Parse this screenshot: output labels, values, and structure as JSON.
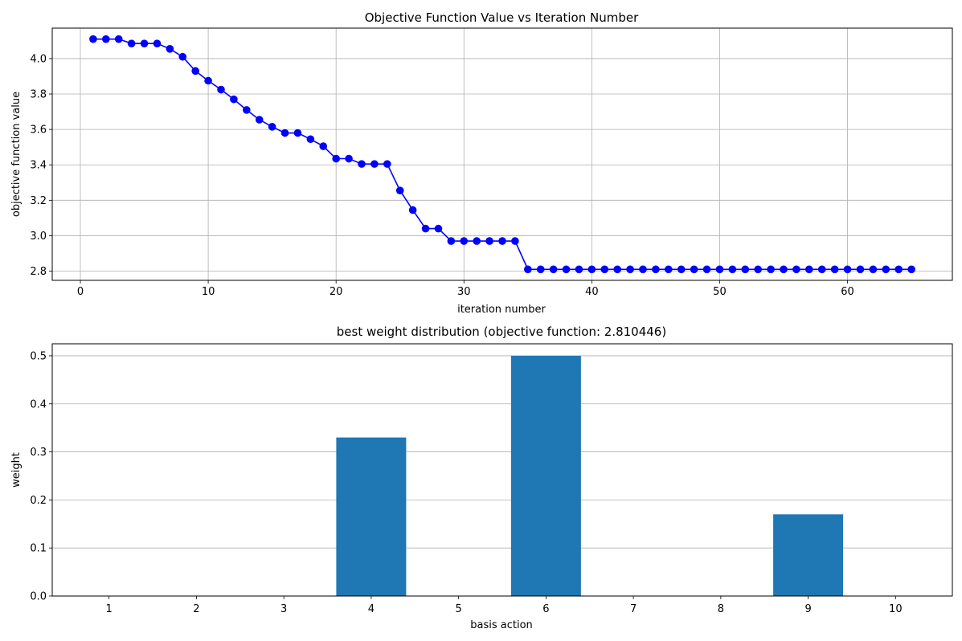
{
  "chart_data": [
    {
      "type": "line",
      "title": "Objective Function Value vs Iteration Number",
      "xlabel": "iteration number",
      "ylabel": "objective function value",
      "xlim": [
        -2.2,
        68.2
      ],
      "ylim": [
        2.748,
        4.172
      ],
      "xticks": [
        0,
        10,
        20,
        30,
        40,
        50,
        60
      ],
      "yticks": [
        2.8,
        3.0,
        3.2,
        3.4,
        3.6,
        3.8,
        4.0
      ],
      "ytick_labels": [
        "2.8",
        "3.0",
        "3.2",
        "3.4",
        "3.6",
        "3.8",
        "4.0"
      ],
      "grid": true,
      "line_color": "#0000ff",
      "marker": "circle",
      "series": [
        {
          "x": [
            1,
            2,
            3,
            4,
            5,
            6,
            7,
            8,
            9,
            10,
            11,
            12,
            13,
            14,
            15,
            16,
            17,
            18,
            19,
            20,
            21,
            22,
            23,
            24,
            25,
            26,
            27,
            28,
            29,
            30,
            31,
            32,
            33,
            34,
            35,
            36,
            37,
            38,
            39,
            40,
            41,
            42,
            43,
            44,
            45,
            46,
            47,
            48,
            49,
            50,
            51,
            52,
            53,
            54,
            55,
            56,
            57,
            58,
            59,
            60,
            61,
            62,
            63,
            64,
            65
          ],
          "values": [
            4.11,
            4.11,
            4.11,
            4.085,
            4.085,
            4.085,
            4.055,
            4.01,
            3.93,
            3.875,
            3.825,
            3.77,
            3.71,
            3.655,
            3.615,
            3.58,
            3.58,
            3.545,
            3.505,
            3.435,
            3.435,
            3.405,
            3.405,
            3.405,
            3.255,
            3.145,
            3.04,
            3.04,
            2.97,
            2.97,
            2.97,
            2.97,
            2.97,
            2.97,
            2.81,
            2.81,
            2.81,
            2.81,
            2.81,
            2.81,
            2.81,
            2.81,
            2.81,
            2.81,
            2.81,
            2.81,
            2.81,
            2.81,
            2.81,
            2.81,
            2.81,
            2.81,
            2.81,
            2.81,
            2.81,
            2.81,
            2.81,
            2.81,
            2.81,
            2.81,
            2.81,
            2.81,
            2.81,
            2.81,
            2.81
          ]
        }
      ]
    },
    {
      "type": "bar",
      "title": "best weight distribution (objective function: 2.810446)",
      "xlabel": "basis action",
      "ylabel": "weight",
      "categories": [
        "1",
        "2",
        "3",
        "4",
        "5",
        "6",
        "7",
        "8",
        "9",
        "10"
      ],
      "values": [
        0,
        0,
        0,
        0.33,
        0,
        0.5,
        0,
        0,
        0.17,
        0
      ],
      "ylim": [
        0,
        0.525
      ],
      "yticks": [
        0.0,
        0.1,
        0.2,
        0.3,
        0.4,
        0.5
      ],
      "ytick_labels": [
        "0.0",
        "0.1",
        "0.2",
        "0.3",
        "0.4",
        "0.5"
      ],
      "grid": "y",
      "bar_color": "#1f77b4"
    }
  ]
}
